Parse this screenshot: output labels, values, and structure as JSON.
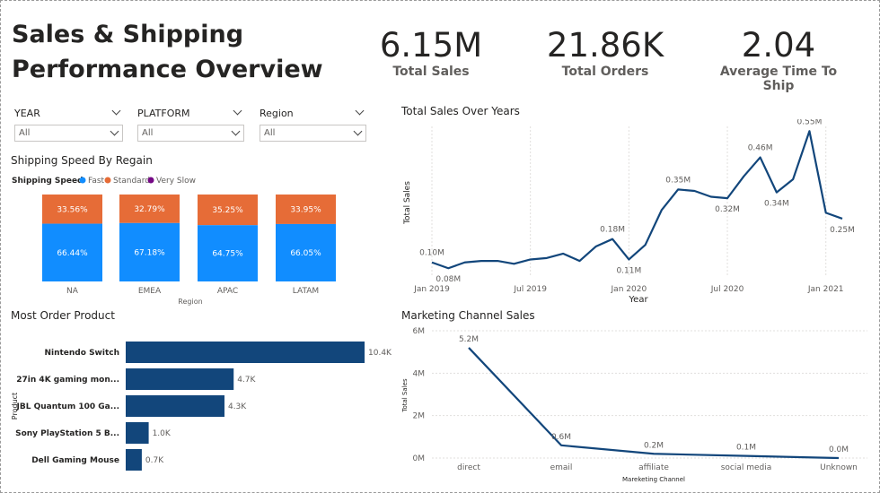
{
  "dashboard": {
    "title_line1": "Sales & Shipping",
    "title_line2": "Performance Overview"
  },
  "kpis": [
    {
      "value": "6.15M",
      "label": "Total Sales"
    },
    {
      "value": "21.86K",
      "label": "Total Orders"
    },
    {
      "value": "2.04",
      "label": "Average Time To Ship"
    }
  ],
  "slicers": [
    {
      "label": "YEAR",
      "value": "All"
    },
    {
      "label": "PLATFORM",
      "value": "All"
    },
    {
      "label": "Region",
      "value": "All"
    }
  ],
  "colors": {
    "fast": "#118DFF",
    "standard": "#E66C37",
    "very_slow": "#750985",
    "navy": "#12467B"
  },
  "chart_data": [
    {
      "type": "bar",
      "subtype": "stacked-100",
      "title": "Shipping Speed By Regain",
      "legend_title": "Shipping Speed",
      "xlabel": "Region",
      "categories": [
        "NA",
        "EMEA",
        "APAC",
        "LATAM"
      ],
      "series": [
        {
          "name": "Fast",
          "values": [
            66.44,
            67.18,
            64.75,
            66.05
          ],
          "labels": [
            "66.44%",
            "67.18%",
            "64.75%",
            "66.05%"
          ]
        },
        {
          "name": "Standard",
          "values": [
            33.56,
            32.79,
            35.25,
            33.95
          ],
          "labels": [
            "33.56%",
            "32.79%",
            "35.25%",
            "33.95%"
          ]
        },
        {
          "name": "Very Slow",
          "values": [
            0,
            0.03,
            0,
            0
          ]
        }
      ]
    },
    {
      "type": "line",
      "title": "Total Sales Over Years",
      "xlabel": "Year",
      "ylabel": "Total Sales",
      "x_ticks": [
        "Jan 2019",
        "Jul 2019",
        "Jan 2020",
        "Jul 2020",
        "Jan 2021"
      ],
      "x": [
        "2019-01",
        "2019-02",
        "2019-03",
        "2019-04",
        "2019-05",
        "2019-06",
        "2019-07",
        "2019-08",
        "2019-09",
        "2019-10",
        "2019-11",
        "2019-12",
        "2020-01",
        "2020-02",
        "2020-03",
        "2020-04",
        "2020-05",
        "2020-06",
        "2020-07",
        "2020-08",
        "2020-09",
        "2020-10",
        "2020-11",
        "2020-12",
        "2021-01",
        "2021-02"
      ],
      "values": [
        0.1,
        0.08,
        0.1,
        0.105,
        0.105,
        0.095,
        0.11,
        0.115,
        0.13,
        0.105,
        0.155,
        0.18,
        0.11,
        0.16,
        0.28,
        0.35,
        0.345,
        0.325,
        0.32,
        0.395,
        0.46,
        0.34,
        0.385,
        0.55,
        0.27,
        0.25
      ],
      "point_labels": [
        {
          "index": 0,
          "text": "0.10M"
        },
        {
          "index": 1,
          "text": "0.08M"
        },
        {
          "index": 11,
          "text": "0.18M"
        },
        {
          "index": 12,
          "text": "0.11M"
        },
        {
          "index": 15,
          "text": "0.35M"
        },
        {
          "index": 18,
          "text": "0.32M"
        },
        {
          "index": 20,
          "text": "0.46M"
        },
        {
          "index": 21,
          "text": "0.34M"
        },
        {
          "index": 23,
          "text": "0.55M"
        },
        {
          "index": 25,
          "text": "0.25M"
        }
      ]
    },
    {
      "type": "bar",
      "orientation": "horizontal",
      "title": "Most Order Product",
      "ylabel": "Product",
      "categories": [
        "Nintendo Switch",
        "27in 4K gaming mon...",
        "JBL Quantum 100 Ga...",
        "Sony PlayStation 5 B...",
        "Dell Gaming Mouse"
      ],
      "values": [
        10.4,
        4.7,
        4.3,
        1.0,
        0.7
      ],
      "labels": [
        "10.4K",
        "4.7K",
        "4.3K",
        "1.0K",
        "0.7K"
      ]
    },
    {
      "type": "line",
      "title": "Marketing Channel Sales",
      "xlabel": "Mareketing Channel",
      "ylabel": "Total Sales",
      "categories": [
        "direct",
        "email",
        "affiliate",
        "social media",
        "Unknown"
      ],
      "values": [
        5.2,
        0.6,
        0.2,
        0.1,
        0.0
      ],
      "labels": [
        "5.2M",
        "0.6M",
        "0.2M",
        "0.1M",
        "0.0M"
      ],
      "y_ticks": [
        "0M",
        "2M",
        "4M",
        "6M"
      ],
      "ylim": [
        0,
        6
      ]
    }
  ]
}
